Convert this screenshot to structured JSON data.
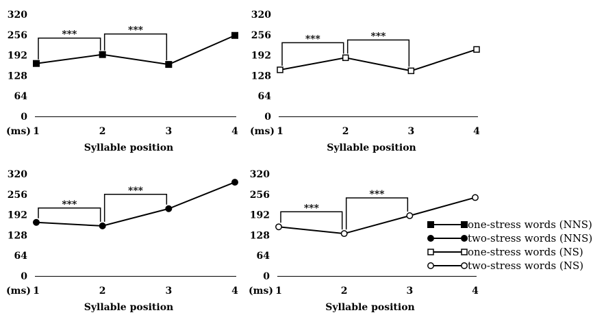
{
  "chart_data": [
    {
      "type": "line",
      "series_name": "one-stress words (NNS)",
      "marker": "filled-square",
      "x": [
        1,
        2,
        3,
        4
      ],
      "y": [
        166,
        194,
        163,
        254
      ],
      "xlabel": "Syllable position",
      "y_unit": "(ms)",
      "yticks": [
        0,
        64,
        128,
        192,
        256,
        320
      ],
      "ylim": [
        0,
        320
      ],
      "brackets": [
        {
          "from": 1,
          "to": 2,
          "label": "***"
        },
        {
          "from": 2,
          "to": 3,
          "label": "***"
        }
      ]
    },
    {
      "type": "line",
      "series_name": "one-stress words (NS)",
      "marker": "open-square",
      "x": [
        1,
        2,
        3,
        4
      ],
      "y": [
        146,
        184,
        143,
        210
      ],
      "xlabel": "Syllable position",
      "y_unit": "(ms)",
      "yticks": [
        0,
        64,
        128,
        192,
        256,
        320
      ],
      "ylim": [
        0,
        320
      ],
      "brackets": [
        {
          "from": 1,
          "to": 2,
          "label": "***"
        },
        {
          "from": 2,
          "to": 3,
          "label": "***"
        }
      ]
    },
    {
      "type": "line",
      "series_name": "two-stress words (NNS)",
      "marker": "filled-circle",
      "x": [
        1,
        2,
        3,
        4
      ],
      "y": [
        168,
        157,
        211,
        294
      ],
      "xlabel": "Syllable position",
      "y_unit": "(ms)",
      "yticks": [
        0,
        64,
        128,
        192,
        256,
        320
      ],
      "ylim": [
        0,
        320
      ],
      "brackets": [
        {
          "from": 1,
          "to": 2,
          "label": "***"
        },
        {
          "from": 2,
          "to": 3,
          "label": "***"
        }
      ]
    },
    {
      "type": "line",
      "series_name": "two-stress words (NS)",
      "marker": "open-circle",
      "x": [
        1,
        2,
        3,
        4
      ],
      "y": [
        154,
        133,
        189,
        246
      ],
      "xlabel": "Syllable position",
      "y_unit": "(ms)",
      "yticks": [
        0,
        64,
        128,
        192,
        256,
        320
      ],
      "ylim": [
        0,
        320
      ],
      "brackets": [
        {
          "from": 1,
          "to": 2,
          "label": "***"
        },
        {
          "from": 2,
          "to": 3,
          "label": "***"
        }
      ]
    }
  ],
  "legend": {
    "placement": "bottom-right",
    "items": [
      {
        "label": "one-stress words (NNS)",
        "marker": "filled-square"
      },
      {
        "label": "two-stress words (NNS)",
        "marker": "filled-circle"
      },
      {
        "label": "one-stress words (NS)",
        "marker": "open-square"
      },
      {
        "label": "two-stress words (NS)",
        "marker": "open-circle"
      }
    ]
  }
}
